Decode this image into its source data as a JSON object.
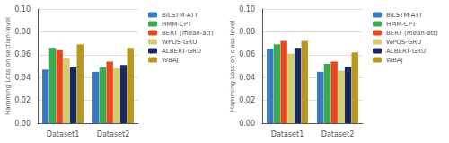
{
  "chart_data": [
    {
      "type": "bar",
      "categories": [
        "Dataset1",
        "Dataset2"
      ],
      "series": [
        {
          "name": "BiLSTM-ATT",
          "color": "#3a78c0",
          "values": [
            0.047,
            0.045
          ]
        },
        {
          "name": "HMM-CPT",
          "color": "#3aaa50",
          "values": [
            0.066,
            0.049
          ]
        },
        {
          "name": "BERT (mean-att)",
          "color": "#e84820",
          "values": [
            0.064,
            0.054
          ]
        },
        {
          "name": "WPOS-GRU",
          "color": "#d4cc70",
          "values": [
            0.057,
            0.048
          ]
        },
        {
          "name": "ALBERT-GRU",
          "color": "#1a2860",
          "values": [
            0.049,
            0.051
          ]
        },
        {
          "name": "WBAJ",
          "color": "#b89820",
          "values": [
            0.069,
            0.066
          ]
        }
      ],
      "ylabel": "Hamming Loss on section-level",
      "ylim": [
        0.0,
        0.1
      ],
      "yticks": [
        {
          "value": 0,
          "label": "0.00"
        },
        0.02,
        0.04,
        0.06,
        0.08,
        {
          "value": 0.1,
          "label": "0.10"
        }
      ],
      "grid": true,
      "legend": "upper right"
    },
    {
      "type": "bar",
      "categories": [
        "Dataset1",
        "Dataset2"
      ],
      "series": [
        {
          "name": "BiLSTM-ATT",
          "color": "#3a78c0",
          "values": [
            0.065,
            0.045
          ]
        },
        {
          "name": "HMM-CPT",
          "color": "#3aaa50",
          "values": [
            0.069,
            0.052
          ]
        },
        {
          "name": "BERT (mean-att)",
          "color": "#e84820",
          "values": [
            0.072,
            0.054
          ]
        },
        {
          "name": "WPOS-GRU",
          "color": "#d4cc70",
          "values": [
            0.061,
            0.046
          ]
        },
        {
          "name": "ALBERT-GRU",
          "color": "#1a2860",
          "values": [
            0.066,
            0.049
          ]
        },
        {
          "name": "WBAJ",
          "color": "#b89820",
          "values": [
            0.072,
            0.062
          ]
        }
      ],
      "ylabel": "Hamming Loss on class-level",
      "ylim": [
        0.0,
        0.1
      ],
      "yticks": [
        {
          "value": 0,
          "label": "0.00"
        },
        0.02,
        0.04,
        0.06,
        0.08,
        {
          "value": 0.1,
          "label": "0.10"
        }
      ],
      "grid": true,
      "legend": "upper right"
    }
  ]
}
